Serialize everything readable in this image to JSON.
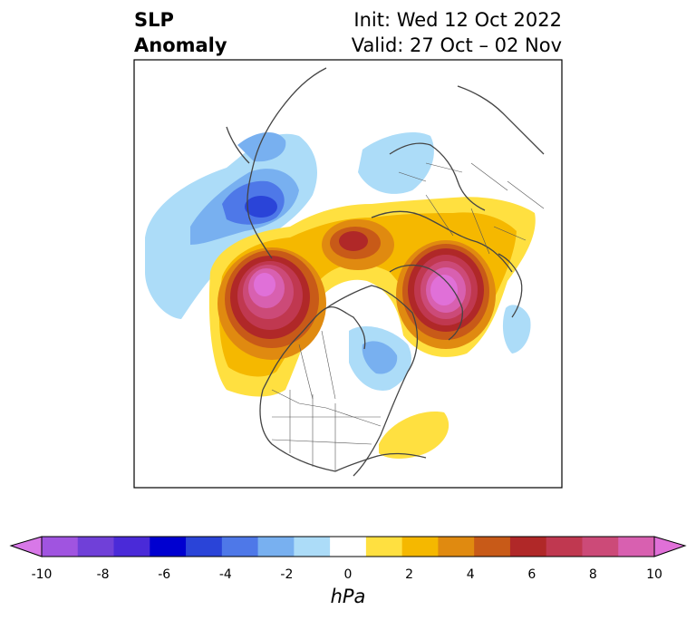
{
  "title": {
    "left_line1": "SLP",
    "left_line2": "Anomaly",
    "right_line1": "Init: Wed 12 Oct 2022",
    "right_line2": "Valid: 27 Oct – 02 Nov"
  },
  "colorbar": {
    "unit": "hPa",
    "ticks": [
      "-10",
      "-8",
      "-6",
      "-4",
      "-2",
      "0",
      "2",
      "4",
      "6",
      "8",
      "10"
    ],
    "colors": [
      "#d878e8",
      "#a054e0",
      "#7040d8",
      "#4a2ad8",
      "#0000d0",
      "#2a44d8",
      "#4e78e8",
      "#78b0f0",
      "#acdcf8",
      "#ffffff",
      "#ffe040",
      "#f5b800",
      "#e08a10",
      "#c85a18",
      "#b02828",
      "#c03850",
      "#cc4a78",
      "#d860b0",
      "#e070d8"
    ]
  }
}
